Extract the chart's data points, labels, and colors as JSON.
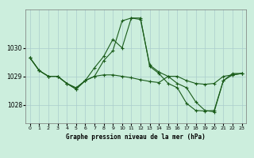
{
  "title": "Graphe pression niveau de la mer (hPa)",
  "background_color": "#cceedd",
  "grid_color": "#aacccc",
  "line_color": "#1a5c1a",
  "xlim": [
    -0.5,
    23.5
  ],
  "ylim": [
    1027.35,
    1031.35
  ],
  "yticks": [
    1028,
    1029,
    1030
  ],
  "xticks": [
    0,
    1,
    2,
    3,
    4,
    5,
    6,
    7,
    8,
    9,
    10,
    11,
    12,
    13,
    14,
    15,
    16,
    17,
    18,
    19,
    20,
    21,
    22,
    23
  ],
  "series1_x": [
    0,
    1,
    2,
    3,
    4,
    5,
    6,
    7,
    8,
    9,
    10,
    11,
    12,
    13,
    14,
    15,
    16,
    17,
    18,
    19,
    20,
    21,
    22,
    23
  ],
  "series1_y": [
    1029.65,
    1029.2,
    1029.0,
    1029.0,
    1028.75,
    1028.6,
    1028.85,
    1029.0,
    1029.05,
    1029.05,
    1029.0,
    1028.95,
    1028.88,
    1028.82,
    1028.78,
    1029.0,
    1029.0,
    1028.85,
    1028.75,
    1028.72,
    1028.75,
    1029.0,
    1029.05,
    1029.1
  ],
  "series2_x": [
    0,
    1,
    2,
    3,
    4,
    5,
    6,
    7,
    8,
    9,
    10,
    11,
    12,
    13,
    14,
    15,
    16,
    17,
    18,
    19,
    20,
    21,
    22,
    23
  ],
  "series2_y": [
    1029.65,
    1029.2,
    1029.0,
    1029.0,
    1028.75,
    1028.55,
    1028.85,
    1029.3,
    1029.7,
    1030.3,
    1030.0,
    1031.05,
    1031.0,
    1029.4,
    1029.15,
    1029.0,
    1028.75,
    1028.6,
    1028.1,
    1027.8,
    1027.75,
    1028.85,
    1029.1,
    1029.1
  ],
  "series3_x": [
    0,
    1,
    2,
    3,
    4,
    5,
    6,
    7,
    8,
    9,
    10,
    11,
    12,
    13,
    14,
    15,
    16,
    17,
    18,
    19,
    20,
    21,
    22,
    23
  ],
  "series3_y": [
    1029.65,
    1029.2,
    1029.0,
    1029.0,
    1028.75,
    1028.55,
    1028.85,
    1029.0,
    1029.55,
    1029.9,
    1030.95,
    1031.05,
    1031.05,
    1029.35,
    1029.1,
    1028.75,
    1028.6,
    1028.05,
    1027.8,
    1027.78,
    1027.8,
    1028.85,
    1029.05,
    1029.1
  ]
}
